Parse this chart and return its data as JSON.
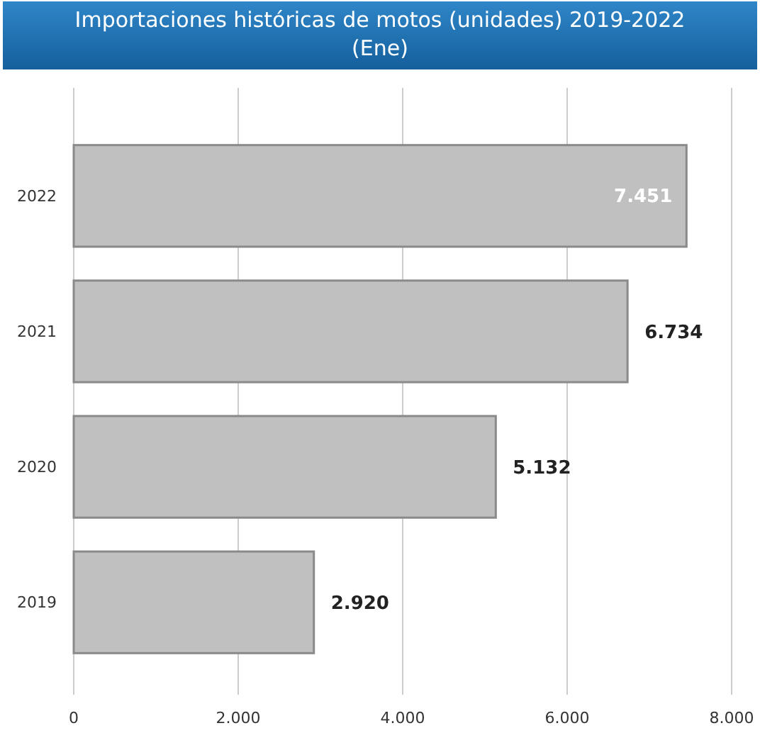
{
  "chart_data": {
    "type": "bar",
    "orientation": "horizontal",
    "title": "Importaciones históricas de motos (unidades) 2019-2022 (Ene)",
    "categories": [
      "2022",
      "2021",
      "2020",
      "2019"
    ],
    "values": [
      7451,
      6734,
      5132,
      2920
    ],
    "value_labels": [
      "7.451",
      "6.734",
      "5.132",
      "2.920"
    ],
    "color": "#c0c0c0",
    "xlim": [
      0,
      8000
    ],
    "xticks": [
      0,
      {
        "value": 2000,
        "label": "2.000"
      },
      {
        "value": 4000,
        "label": "4.000"
      },
      {
        "value": 6000,
        "label": "6.000"
      },
      {
        "value": 8000,
        "label": "8.000"
      }
    ],
    "grid": "x"
  }
}
